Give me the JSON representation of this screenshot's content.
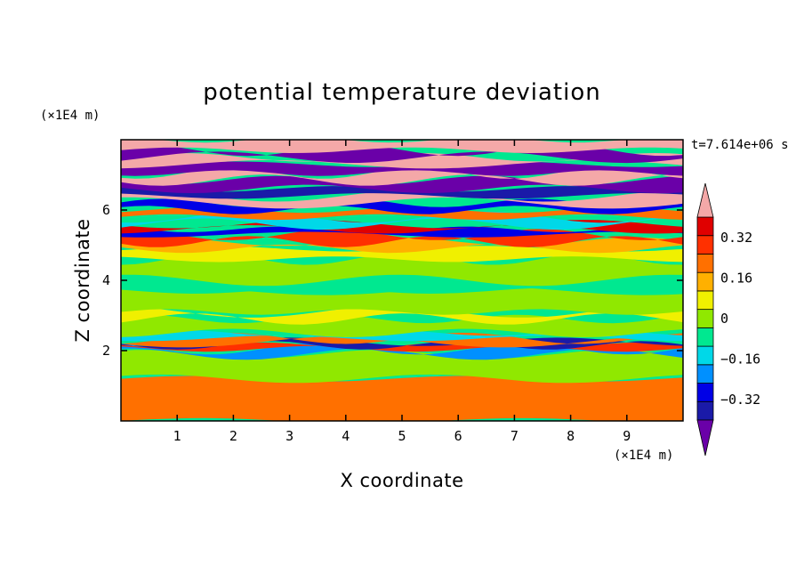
{
  "chart_data": {
    "type": "heatmap",
    "title": "potential temperature deviation",
    "xlabel": "X coordinate",
    "ylabel": "Z coordinate",
    "x_unit": "(×1E4 m)",
    "y_unit": "(×1E4 m)",
    "time_label": "t=7.614e+06 s",
    "xlim": [
      0,
      10
    ],
    "ylim": [
      0,
      8
    ],
    "xticks": [
      1,
      2,
      3,
      4,
      5,
      6,
      7,
      8,
      9
    ],
    "yticks": [
      2,
      4,
      6
    ],
    "colorbar": {
      "levels": [
        -0.48,
        -0.4,
        -0.32,
        -0.24,
        -0.16,
        -0.08,
        0,
        0.08,
        0.16,
        0.24,
        0.32,
        0.4,
        0.48
      ],
      "tick_labels": [
        {
          "value": 0.32,
          "label": "0.32"
        },
        {
          "value": 0.16,
          "label": "0.16"
        },
        {
          "value": 0,
          "label": "0"
        },
        {
          "value": -0.16,
          "label": "−0.16"
        },
        {
          "value": -0.32,
          "label": "−0.32"
        }
      ],
      "colors": [
        "#6a00a8",
        "#1a1aa8",
        "#0000e6",
        "#0090ff",
        "#00d8e8",
        "#00e890",
        "#90e800",
        "#f0f000",
        "#ffb000",
        "#ff7000",
        "#ff3000",
        "#e00000",
        "#f4a8a8"
      ]
    },
    "field_description_note": ""
  }
}
